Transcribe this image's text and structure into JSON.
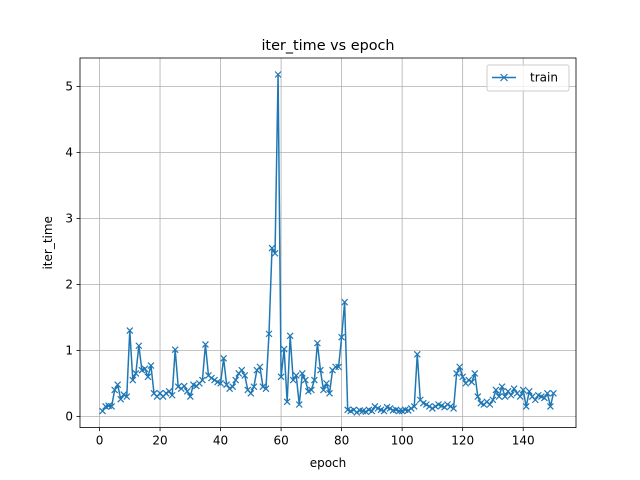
{
  "chart_data": {
    "type": "line",
    "title": "iter_time vs epoch",
    "xlabel": "epoch",
    "ylabel": "iter_time",
    "xlim": [
      -6.45,
      157.45
    ],
    "ylim": [
      -0.17,
      5.43
    ],
    "xticks": [
      0,
      20,
      40,
      60,
      80,
      100,
      120,
      140
    ],
    "yticks": [
      0,
      1,
      2,
      3,
      4,
      5
    ],
    "grid": true,
    "legend": {
      "placement": "upper right"
    },
    "colors": {
      "series": "#1f77b4",
      "grid": "#b0b0b0"
    },
    "series": [
      {
        "name": "train",
        "marker": "x",
        "x": [
          1,
          2,
          3,
          4,
          5,
          6,
          7,
          8,
          9,
          10,
          11,
          12,
          13,
          14,
          15,
          16,
          17,
          18,
          19,
          20,
          21,
          22,
          23,
          24,
          25,
          26,
          27,
          28,
          29,
          30,
          31,
          32,
          33,
          34,
          35,
          36,
          37,
          38,
          39,
          40,
          41,
          42,
          43,
          44,
          45,
          46,
          47,
          48,
          49,
          50,
          51,
          52,
          53,
          54,
          55,
          56,
          57,
          58,
          59,
          60,
          61,
          62,
          63,
          64,
          65,
          66,
          67,
          68,
          69,
          70,
          71,
          72,
          73,
          74,
          75,
          76,
          77,
          78,
          79,
          80,
          81,
          82,
          83,
          84,
          85,
          86,
          87,
          88,
          89,
          90,
          91,
          92,
          93,
          94,
          95,
          96,
          97,
          98,
          99,
          100,
          101,
          102,
          103,
          104,
          105,
          106,
          107,
          108,
          109,
          110,
          111,
          112,
          113,
          114,
          115,
          116,
          117,
          118,
          119,
          120,
          121,
          122,
          123,
          124,
          125,
          126,
          127,
          128,
          129,
          130,
          131,
          132,
          133,
          134,
          135,
          136,
          137,
          138,
          139,
          140,
          141,
          142,
          143,
          144,
          145,
          146,
          147,
          148,
          149,
          150
        ],
        "y": [
          0.08,
          0.15,
          0.16,
          0.15,
          0.4,
          0.48,
          0.26,
          0.33,
          0.3,
          1.3,
          0.55,
          0.65,
          1.07,
          0.7,
          0.72,
          0.6,
          0.77,
          0.35,
          0.3,
          0.35,
          0.3,
          0.35,
          0.38,
          0.32,
          1.01,
          0.45,
          0.42,
          0.46,
          0.38,
          0.3,
          0.48,
          0.46,
          0.5,
          0.55,
          1.09,
          0.62,
          0.58,
          0.55,
          0.52,
          0.5,
          0.88,
          0.48,
          0.42,
          0.45,
          0.55,
          0.65,
          0.7,
          0.62,
          0.4,
          0.35,
          0.45,
          0.7,
          0.75,
          0.45,
          0.42,
          1.25,
          2.55,
          2.47,
          5.18,
          0.6,
          1.02,
          0.22,
          1.22,
          0.55,
          0.62,
          0.18,
          0.65,
          0.55,
          0.38,
          0.4,
          0.55,
          1.11,
          0.7,
          0.4,
          0.5,
          0.35,
          0.7,
          0.75,
          0.75,
          1.2,
          1.73,
          0.1,
          0.08,
          0.1,
          0.06,
          0.09,
          0.08,
          0.07,
          0.1,
          0.08,
          0.15,
          0.12,
          0.1,
          0.08,
          0.14,
          0.12,
          0.09,
          0.1,
          0.08,
          0.08,
          0.1,
          0.09,
          0.12,
          0.15,
          0.94,
          0.25,
          0.2,
          0.18,
          0.15,
          0.12,
          0.15,
          0.18,
          0.16,
          0.14,
          0.18,
          0.15,
          0.12,
          0.65,
          0.75,
          0.6,
          0.5,
          0.55,
          0.52,
          0.65,
          0.3,
          0.2,
          0.18,
          0.22,
          0.18,
          0.25,
          0.4,
          0.3,
          0.45,
          0.3,
          0.38,
          0.32,
          0.42,
          0.35,
          0.3,
          0.4,
          0.15,
          0.38,
          0.3,
          0.25,
          0.32,
          0.3,
          0.28,
          0.35,
          0.15,
          0.35
        ]
      }
    ]
  }
}
